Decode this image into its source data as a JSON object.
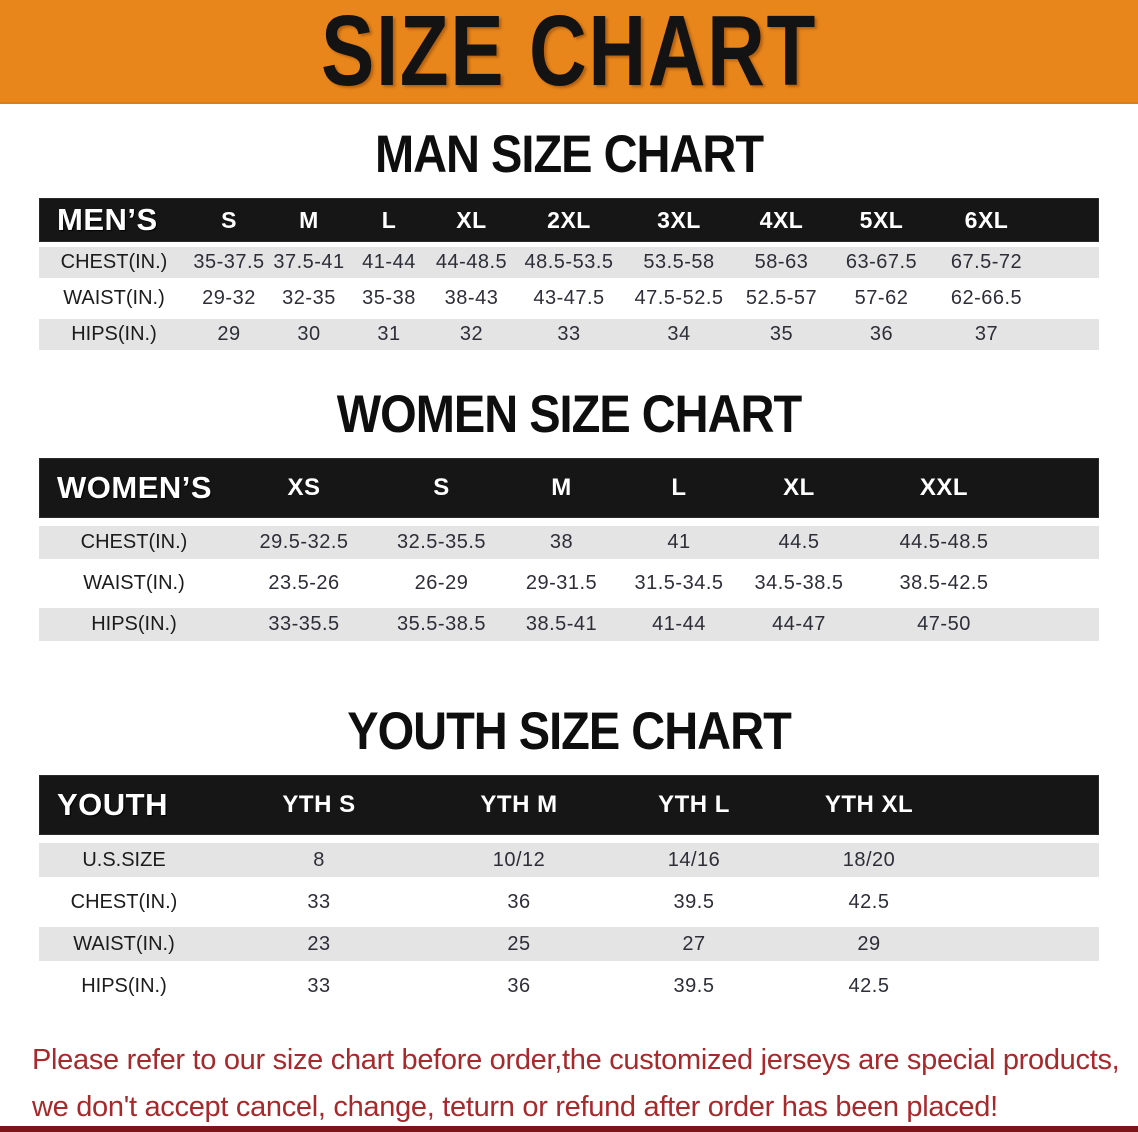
{
  "banner": {
    "title": "SIZE CHART"
  },
  "sections": [
    {
      "heading": "MAN SIZE CHART",
      "table": {
        "label": "MEN’S",
        "columns": [
          "S",
          "M",
          "L",
          "XL",
          "2XL",
          "3XL",
          "4XL",
          "5XL",
          "6XL"
        ],
        "rows": [
          {
            "label": "CHEST(IN.)",
            "values": [
              "35-37.5",
              "37.5-41",
              "41-44",
              "44-48.5",
              "48.5-53.5",
              "53.5-58",
              "58-63",
              "63-67.5",
              "67.5-72"
            ]
          },
          {
            "label": "WAIST(IN.)",
            "values": [
              "29-32",
              "32-35",
              "35-38",
              "38-43",
              "43-47.5",
              "47.5-52.5",
              "52.5-57",
              "57-62",
              "62-66.5"
            ]
          },
          {
            "label": "HIPS(IN.)",
            "values": [
              "29",
              "30",
              "31",
              "32",
              "33",
              "34",
              "35",
              "36",
              "37"
            ]
          }
        ]
      }
    },
    {
      "heading": "WOMEN SIZE CHART",
      "table": {
        "label": "WOMEN’S",
        "columns": [
          "XS",
          "S",
          "M",
          "L",
          "XL",
          "XXL"
        ],
        "rows": [
          {
            "label": "CHEST(IN.)",
            "values": [
              "29.5-32.5",
              "32.5-35.5",
              "38",
              "41",
              "44.5",
              "44.5-48.5"
            ]
          },
          {
            "label": "WAIST(IN.)",
            "values": [
              "23.5-26",
              "26-29",
              "29-31.5",
              "31.5-34.5",
              "34.5-38.5",
              "38.5-42.5"
            ]
          },
          {
            "label": "HIPS(IN.)",
            "values": [
              "33-35.5",
              "35.5-38.5",
              "38.5-41",
              "41-44",
              "44-47",
              "47-50"
            ]
          }
        ]
      }
    },
    {
      "heading": "YOUTH SIZE CHART",
      "table": {
        "label": "YOUTH",
        "columns": [
          "YTH S",
          "YTH M",
          "YTH L",
          "YTH XL"
        ],
        "rows": [
          {
            "label": "U.S.SIZE",
            "values": [
              "8",
              "10/12",
              "14/16",
              "18/20"
            ]
          },
          {
            "label": "CHEST(IN.)",
            "values": [
              "33",
              "36",
              "39.5",
              "42.5"
            ]
          },
          {
            "label": "WAIST(IN.)",
            "values": [
              "23",
              "25",
              "27",
              "29"
            ]
          },
          {
            "label": "HIPS(IN.)",
            "values": [
              "33",
              "36",
              "39.5",
              "42.5"
            ]
          }
        ]
      }
    }
  ],
  "disclaimer": {
    "lines": [
      "Please refer to our size chart before order,the customized jerseys are special products,",
      "we don't accept cancel, change, teturn or refund after order has been placed!"
    ]
  },
  "colors": {
    "banner_bg": "#E8861B",
    "table_header_bg": "#161616",
    "row_alt_bg": "#E4E4E4",
    "disclaimer_text": "#A8292B",
    "bottom_strip": "#7B151A"
  }
}
